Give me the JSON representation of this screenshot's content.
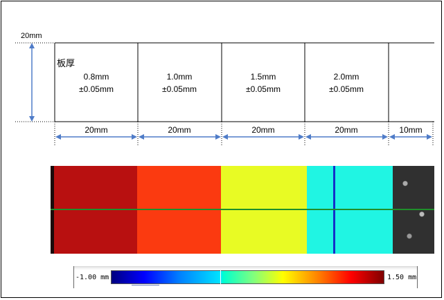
{
  "diagram": {
    "height_label": "20mm",
    "thickness_heading": "板厚",
    "cells": [
      {
        "thickness": "0.8mm",
        "tolerance": "±0.05mm",
        "width": "20mm"
      },
      {
        "thickness": "1.0mm",
        "tolerance": "±0.05mm",
        "width": "20mm"
      },
      {
        "thickness": "1.5mm",
        "tolerance": "±0.05mm",
        "width": "20mm"
      },
      {
        "thickness": "2.0mm",
        "tolerance": "±0.05mm",
        "width": "20mm"
      },
      {
        "thickness": "",
        "tolerance": "",
        "width": "10mm"
      }
    ]
  },
  "heatmap": {
    "segments": [
      {
        "color": "#b81010"
      },
      {
        "color": "#fb3a10"
      },
      {
        "color": "#e8fb24"
      },
      {
        "color": "#20f5e3"
      },
      {
        "color": "#303030"
      }
    ],
    "centerline_color": "#1f8f2a",
    "marker_color": "#1530c8"
  },
  "colorbar": {
    "min_label": "-1.00 mm",
    "max_label": "1.50 mm"
  },
  "colors": {
    "arrow": "#4f7cc8",
    "dotted": "#000000"
  }
}
